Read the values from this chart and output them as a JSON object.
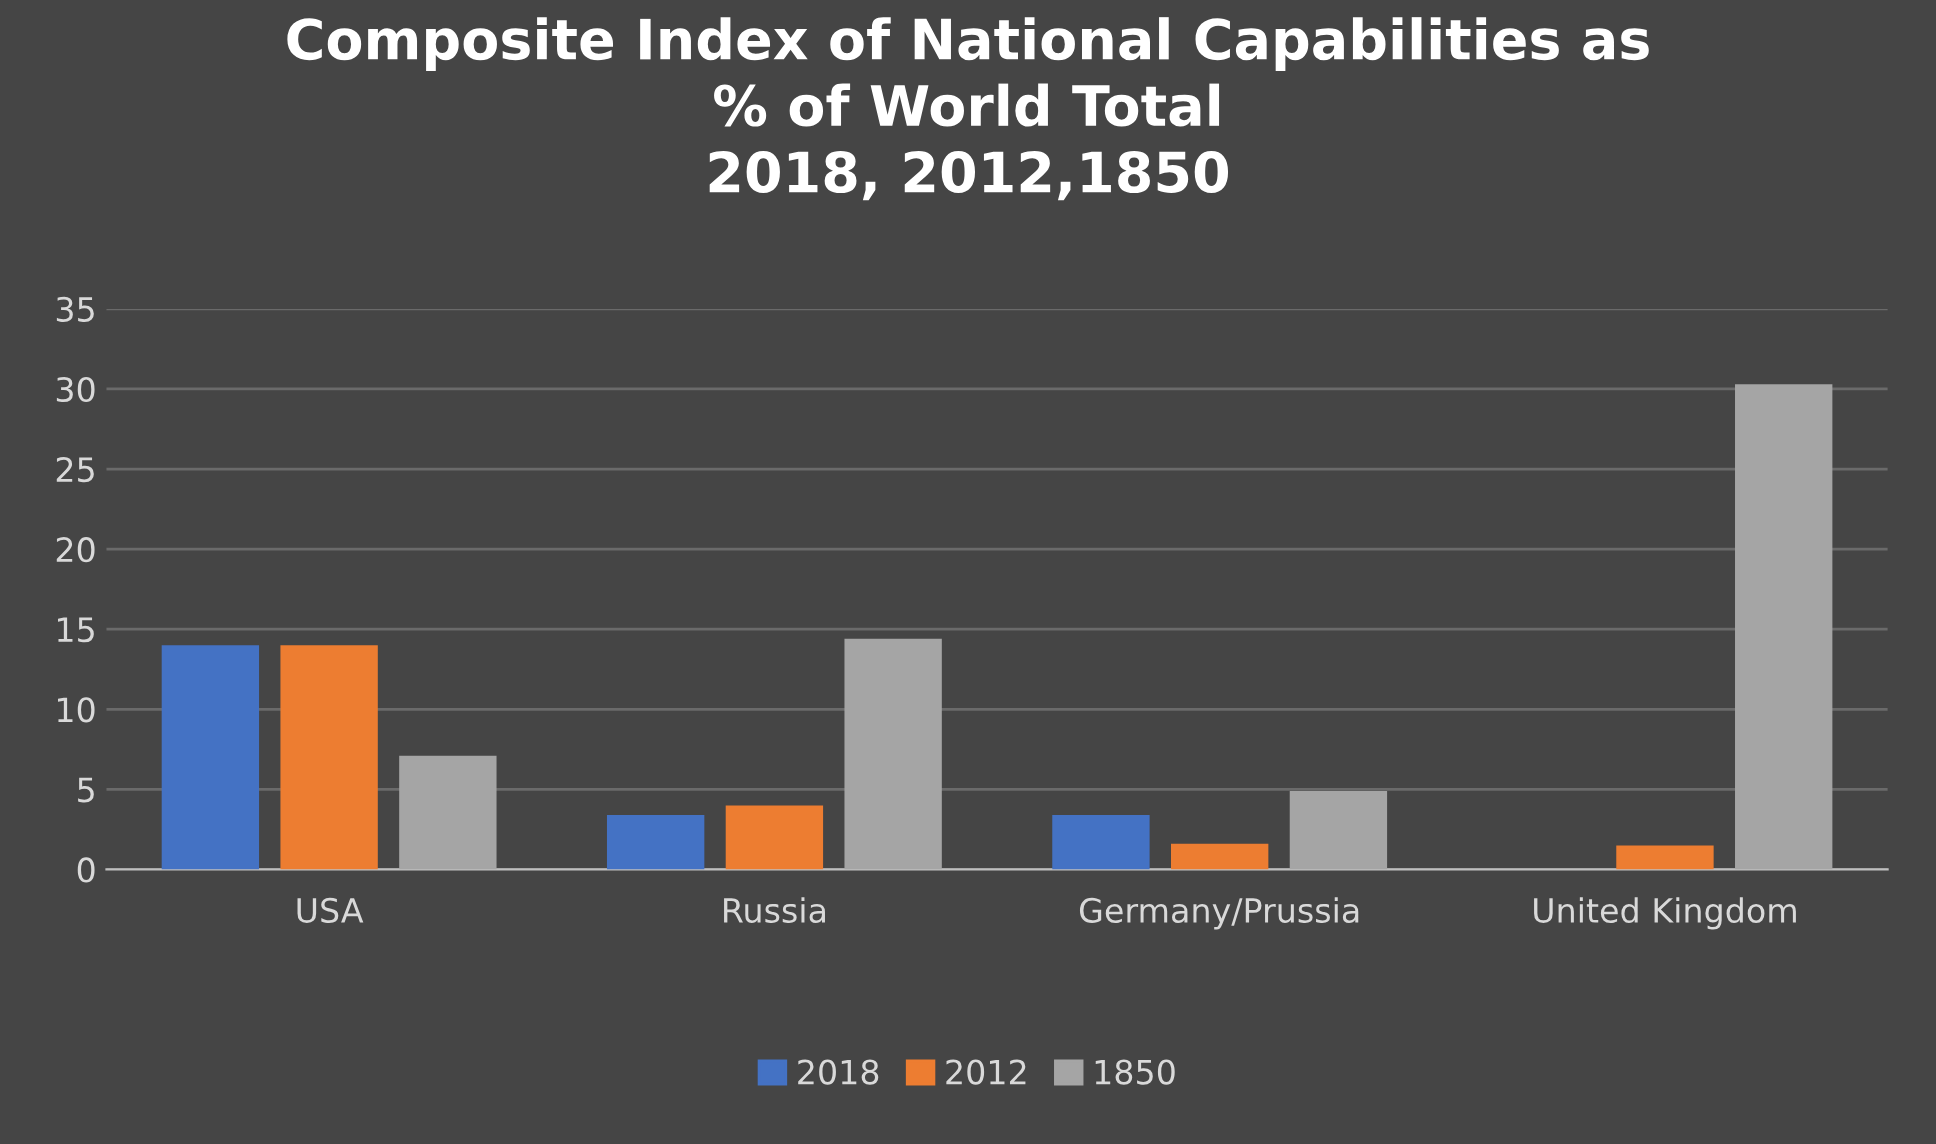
{
  "chart_data": {
    "type": "bar",
    "title": "Composite Index of National Capabilities as\n% of World Total\n2018, 2012,1850",
    "categories": [
      "USA",
      "Russia",
      "Germany/Prussia",
      "United Kingdom"
    ],
    "series": [
      {
        "name": "2018",
        "color": "#4472c4",
        "values": [
          14.0,
          3.4,
          3.4,
          null
        ]
      },
      {
        "name": "2012",
        "color": "#ed7d31",
        "values": [
          14.0,
          4.0,
          1.6,
          1.5
        ]
      },
      {
        "name": "1850",
        "color": "#a5a5a5",
        "values": [
          7.1,
          14.4,
          4.9,
          30.3
        ]
      }
    ],
    "ylim": [
      0,
      35
    ],
    "yticks": [
      0,
      5,
      10,
      15,
      20,
      25,
      30,
      35
    ],
    "grid": "y",
    "legend": "bottom"
  }
}
